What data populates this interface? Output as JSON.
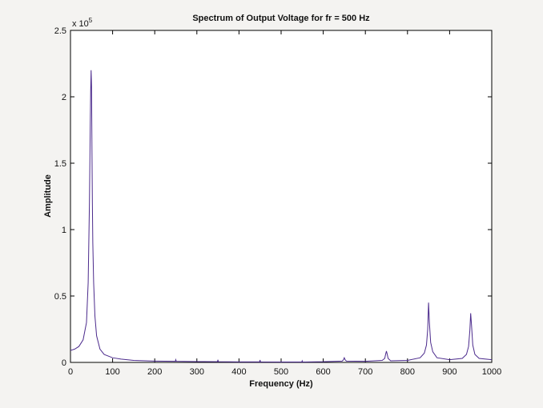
{
  "chart_data": {
    "type": "line",
    "title": "Spectrum of Output Voltage for fr = 500 Hz",
    "xlabel": "Frequency (Hz)",
    "ylabel": "Amplitude",
    "y_exponent_label": "x 10",
    "y_exponent_power": "5",
    "xlim": [
      0,
      1000
    ],
    "ylim": [
      0,
      2.5
    ],
    "x_ticks": [
      "0",
      "100",
      "200",
      "300",
      "400",
      "500",
      "600",
      "700",
      "800",
      "900",
      "1000"
    ],
    "y_ticks": [
      "0",
      "0.5",
      "1",
      "1.5",
      "2",
      "2.5"
    ],
    "grid": false,
    "series": [
      {
        "color": "#4b2a8c",
        "x": [
          0,
          10,
          20,
          30,
          38,
          42,
          45,
          47,
          48,
          49,
          50,
          51,
          52,
          53,
          55,
          58,
          62,
          70,
          80,
          100,
          120,
          150,
          200,
          249,
          250,
          251,
          300,
          349,
          350,
          351,
          400,
          449,
          450,
          451,
          500,
          549,
          550,
          551,
          600,
          645,
          648,
          650,
          652,
          655,
          700,
          740,
          746,
          748,
          750,
          752,
          754,
          760,
          800,
          830,
          840,
          845,
          848,
          850,
          852,
          855,
          860,
          870,
          900,
          930,
          940,
          945,
          948,
          950,
          952,
          955,
          960,
          970,
          1000
        ],
        "y": [
          0.09,
          0.1,
          0.12,
          0.17,
          0.3,
          0.6,
          1.2,
          1.8,
          2.05,
          2.2,
          2.08,
          1.6,
          1.2,
          0.9,
          0.6,
          0.35,
          0.2,
          0.1,
          0.06,
          0.035,
          0.025,
          0.015,
          0.01,
          0.008,
          0.02,
          0.008,
          0.006,
          0.005,
          0.02,
          0.005,
          0.004,
          0.004,
          0.018,
          0.004,
          0.003,
          0.003,
          0.012,
          0.003,
          0.005,
          0.01,
          0.02,
          0.035,
          0.02,
          0.01,
          0.008,
          0.015,
          0.03,
          0.06,
          0.085,
          0.06,
          0.03,
          0.012,
          0.015,
          0.035,
          0.07,
          0.13,
          0.25,
          0.45,
          0.3,
          0.15,
          0.08,
          0.035,
          0.02,
          0.03,
          0.06,
          0.12,
          0.24,
          0.37,
          0.28,
          0.13,
          0.06,
          0.03,
          0.02
        ]
      }
    ]
  }
}
